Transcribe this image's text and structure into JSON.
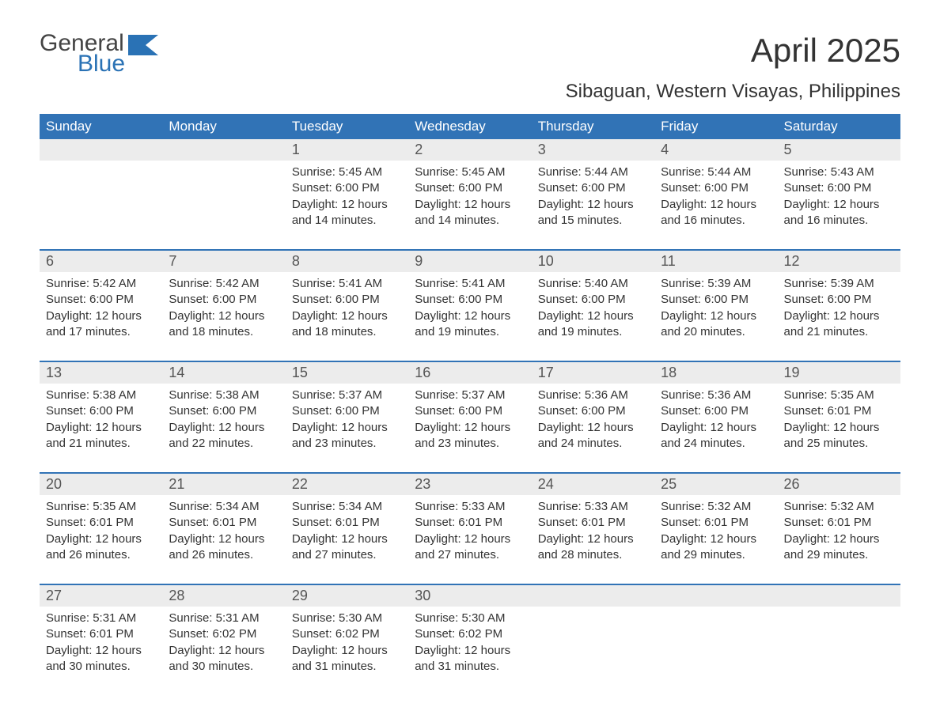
{
  "logo": {
    "general": "General",
    "blue": "Blue"
  },
  "title": "April 2025",
  "subtitle": "Sibaguan, Western Visayas, Philippines",
  "colors": {
    "header_bg": "#3173b6",
    "header_text": "#ffffff",
    "daynum_bg": "#ececec",
    "text": "#333333",
    "logo_blue": "#2a72b5"
  },
  "weekdays": [
    "Sunday",
    "Monday",
    "Tuesday",
    "Wednesday",
    "Thursday",
    "Friday",
    "Saturday"
  ],
  "weeks": [
    [
      {
        "day": "",
        "sunrise": "",
        "sunset": "",
        "daylight": ""
      },
      {
        "day": "",
        "sunrise": "",
        "sunset": "",
        "daylight": ""
      },
      {
        "day": "1",
        "sunrise": "Sunrise: 5:45 AM",
        "sunset": "Sunset: 6:00 PM",
        "daylight": "Daylight: 12 hours and 14 minutes."
      },
      {
        "day": "2",
        "sunrise": "Sunrise: 5:45 AM",
        "sunset": "Sunset: 6:00 PM",
        "daylight": "Daylight: 12 hours and 14 minutes."
      },
      {
        "day": "3",
        "sunrise": "Sunrise: 5:44 AM",
        "sunset": "Sunset: 6:00 PM",
        "daylight": "Daylight: 12 hours and 15 minutes."
      },
      {
        "day": "4",
        "sunrise": "Sunrise: 5:44 AM",
        "sunset": "Sunset: 6:00 PM",
        "daylight": "Daylight: 12 hours and 16 minutes."
      },
      {
        "day": "5",
        "sunrise": "Sunrise: 5:43 AM",
        "sunset": "Sunset: 6:00 PM",
        "daylight": "Daylight: 12 hours and 16 minutes."
      }
    ],
    [
      {
        "day": "6",
        "sunrise": "Sunrise: 5:42 AM",
        "sunset": "Sunset: 6:00 PM",
        "daylight": "Daylight: 12 hours and 17 minutes."
      },
      {
        "day": "7",
        "sunrise": "Sunrise: 5:42 AM",
        "sunset": "Sunset: 6:00 PM",
        "daylight": "Daylight: 12 hours and 18 minutes."
      },
      {
        "day": "8",
        "sunrise": "Sunrise: 5:41 AM",
        "sunset": "Sunset: 6:00 PM",
        "daylight": "Daylight: 12 hours and 18 minutes."
      },
      {
        "day": "9",
        "sunrise": "Sunrise: 5:41 AM",
        "sunset": "Sunset: 6:00 PM",
        "daylight": "Daylight: 12 hours and 19 minutes."
      },
      {
        "day": "10",
        "sunrise": "Sunrise: 5:40 AM",
        "sunset": "Sunset: 6:00 PM",
        "daylight": "Daylight: 12 hours and 19 minutes."
      },
      {
        "day": "11",
        "sunrise": "Sunrise: 5:39 AM",
        "sunset": "Sunset: 6:00 PM",
        "daylight": "Daylight: 12 hours and 20 minutes."
      },
      {
        "day": "12",
        "sunrise": "Sunrise: 5:39 AM",
        "sunset": "Sunset: 6:00 PM",
        "daylight": "Daylight: 12 hours and 21 minutes."
      }
    ],
    [
      {
        "day": "13",
        "sunrise": "Sunrise: 5:38 AM",
        "sunset": "Sunset: 6:00 PM",
        "daylight": "Daylight: 12 hours and 21 minutes."
      },
      {
        "day": "14",
        "sunrise": "Sunrise: 5:38 AM",
        "sunset": "Sunset: 6:00 PM",
        "daylight": "Daylight: 12 hours and 22 minutes."
      },
      {
        "day": "15",
        "sunrise": "Sunrise: 5:37 AM",
        "sunset": "Sunset: 6:00 PM",
        "daylight": "Daylight: 12 hours and 23 minutes."
      },
      {
        "day": "16",
        "sunrise": "Sunrise: 5:37 AM",
        "sunset": "Sunset: 6:00 PM",
        "daylight": "Daylight: 12 hours and 23 minutes."
      },
      {
        "day": "17",
        "sunrise": "Sunrise: 5:36 AM",
        "sunset": "Sunset: 6:00 PM",
        "daylight": "Daylight: 12 hours and 24 minutes."
      },
      {
        "day": "18",
        "sunrise": "Sunrise: 5:36 AM",
        "sunset": "Sunset: 6:00 PM",
        "daylight": "Daylight: 12 hours and 24 minutes."
      },
      {
        "day": "19",
        "sunrise": "Sunrise: 5:35 AM",
        "sunset": "Sunset: 6:01 PM",
        "daylight": "Daylight: 12 hours and 25 minutes."
      }
    ],
    [
      {
        "day": "20",
        "sunrise": "Sunrise: 5:35 AM",
        "sunset": "Sunset: 6:01 PM",
        "daylight": "Daylight: 12 hours and 26 minutes."
      },
      {
        "day": "21",
        "sunrise": "Sunrise: 5:34 AM",
        "sunset": "Sunset: 6:01 PM",
        "daylight": "Daylight: 12 hours and 26 minutes."
      },
      {
        "day": "22",
        "sunrise": "Sunrise: 5:34 AM",
        "sunset": "Sunset: 6:01 PM",
        "daylight": "Daylight: 12 hours and 27 minutes."
      },
      {
        "day": "23",
        "sunrise": "Sunrise: 5:33 AM",
        "sunset": "Sunset: 6:01 PM",
        "daylight": "Daylight: 12 hours and 27 minutes."
      },
      {
        "day": "24",
        "sunrise": "Sunrise: 5:33 AM",
        "sunset": "Sunset: 6:01 PM",
        "daylight": "Daylight: 12 hours and 28 minutes."
      },
      {
        "day": "25",
        "sunrise": "Sunrise: 5:32 AM",
        "sunset": "Sunset: 6:01 PM",
        "daylight": "Daylight: 12 hours and 29 minutes."
      },
      {
        "day": "26",
        "sunrise": "Sunrise: 5:32 AM",
        "sunset": "Sunset: 6:01 PM",
        "daylight": "Daylight: 12 hours and 29 minutes."
      }
    ],
    [
      {
        "day": "27",
        "sunrise": "Sunrise: 5:31 AM",
        "sunset": "Sunset: 6:01 PM",
        "daylight": "Daylight: 12 hours and 30 minutes."
      },
      {
        "day": "28",
        "sunrise": "Sunrise: 5:31 AM",
        "sunset": "Sunset: 6:02 PM",
        "daylight": "Daylight: 12 hours and 30 minutes."
      },
      {
        "day": "29",
        "sunrise": "Sunrise: 5:30 AM",
        "sunset": "Sunset: 6:02 PM",
        "daylight": "Daylight: 12 hours and 31 minutes."
      },
      {
        "day": "30",
        "sunrise": "Sunrise: 5:30 AM",
        "sunset": "Sunset: 6:02 PM",
        "daylight": "Daylight: 12 hours and 31 minutes."
      },
      {
        "day": "",
        "sunrise": "",
        "sunset": "",
        "daylight": ""
      },
      {
        "day": "",
        "sunrise": "",
        "sunset": "",
        "daylight": ""
      },
      {
        "day": "",
        "sunrise": "",
        "sunset": "",
        "daylight": ""
      }
    ]
  ]
}
